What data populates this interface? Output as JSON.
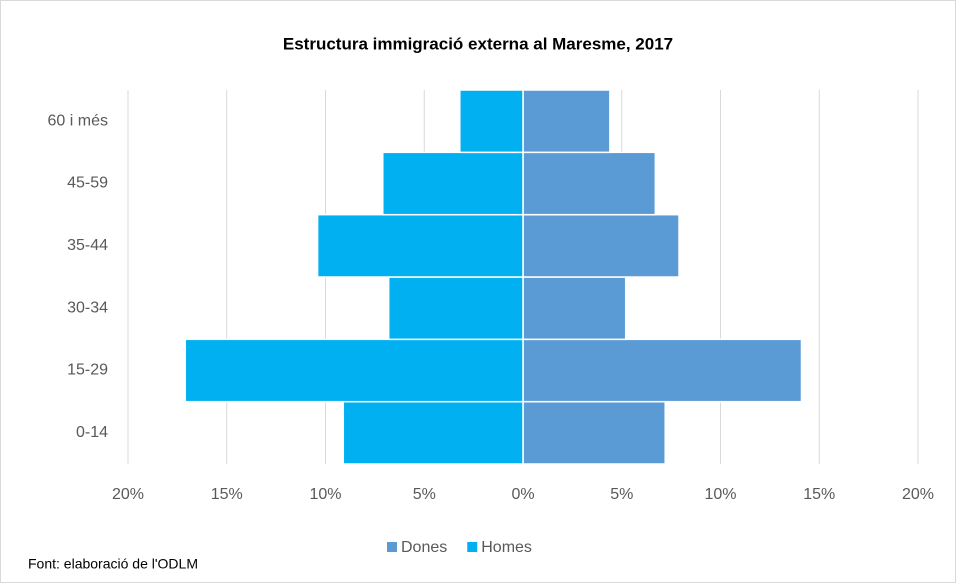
{
  "chart_data": {
    "type": "bar",
    "orientation": "horizontal",
    "title": "Estructura immigració externa al Maresme, 2017",
    "categories": [
      "0-14",
      "15-29",
      "30-34",
      "35-44",
      "45-59",
      "60 i més"
    ],
    "series": [
      {
        "name": "Dones",
        "color": "#5b9bd5",
        "values": [
          7.2,
          14.1,
          5.2,
          7.9,
          6.7,
          4.4
        ]
      },
      {
        "name": "Homes",
        "color": "#00b0f0",
        "values": [
          -9.1,
          -17.1,
          -6.8,
          -10.4,
          -7.1,
          -3.2
        ]
      }
    ],
    "xlim": [
      -20,
      20
    ],
    "xticks": [
      {
        "value": -20,
        "label": "20%"
      },
      {
        "value": -15,
        "label": "15%"
      },
      {
        "value": -10,
        "label": "10%"
      },
      {
        "value": -5,
        "label": "5%"
      },
      {
        "value": 0,
        "label": "0%"
      },
      {
        "value": 5,
        "label": "5%"
      },
      {
        "value": 10,
        "label": "10%"
      },
      {
        "value": 15,
        "label": "15%"
      },
      {
        "value": 20,
        "label": "20%"
      }
    ],
    "grid": true,
    "legend": "bottom",
    "source": "Font: elaboració de l'ODLM"
  }
}
